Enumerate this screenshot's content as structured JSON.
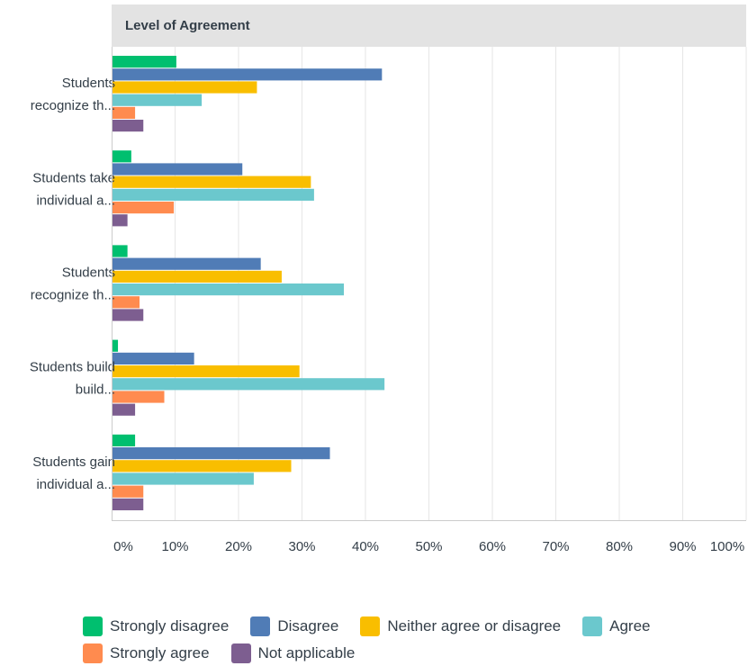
{
  "chart_data": {
    "type": "bar",
    "orientation": "horizontal",
    "title": "",
    "header": "Level of Agreement",
    "categories": [
      [
        "Students",
        "recognize th..."
      ],
      [
        "Students take",
        "individual a..."
      ],
      [
        "Students",
        "recognize th..."
      ],
      [
        "Students build",
        "build..."
      ],
      [
        "Students gain",
        "individual a..."
      ]
    ],
    "series": [
      {
        "name": "Strongly disagree",
        "color": "#00bf6f",
        "values": [
          10.2,
          3.1,
          2.5,
          1.0,
          3.7
        ]
      },
      {
        "name": "Disagree",
        "color": "#507cb6",
        "values": [
          42.6,
          20.6,
          23.5,
          13.0,
          34.4
        ]
      },
      {
        "name": "Neither agree or disagree",
        "color": "#f9be00",
        "values": [
          22.9,
          31.4,
          26.8,
          29.6,
          28.3
        ]
      },
      {
        "name": "Agree",
        "color": "#6bc8cd",
        "values": [
          14.2,
          31.9,
          36.6,
          43.0,
          22.4
        ]
      },
      {
        "name": "Strongly agree",
        "color": "#ff8b4f",
        "values": [
          3.7,
          9.8,
          4.4,
          8.3,
          5.0
        ]
      },
      {
        "name": "Not applicable",
        "color": "#7d5e90",
        "values": [
          5.0,
          2.5,
          5.0,
          3.7,
          5.0
        ]
      }
    ],
    "xlim": [
      0,
      100
    ],
    "ticks": [
      "0%",
      "10%",
      "20%",
      "30%",
      "40%",
      "50%",
      "60%",
      "70%",
      "80%",
      "90%",
      "100%"
    ],
    "grid": true,
    "legend": "bottom"
  }
}
